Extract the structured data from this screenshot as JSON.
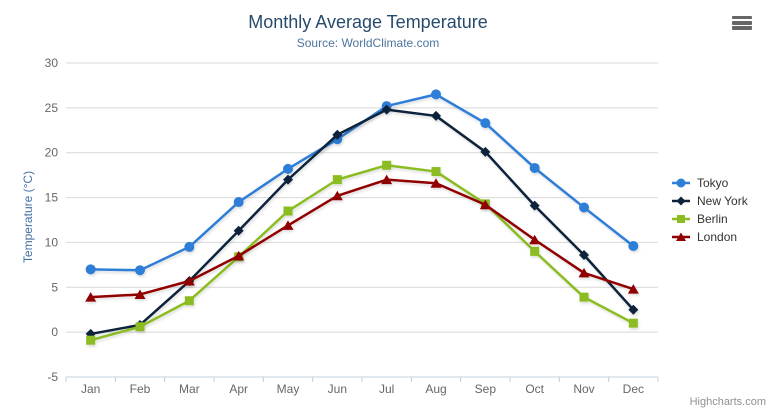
{
  "title": "Monthly Average Temperature",
  "subtitle": "Source: WorldClimate.com",
  "credits": "Highcharts.com",
  "chart_data": {
    "type": "line",
    "title": "Monthly Average Temperature",
    "subtitle": "Source: WorldClimate.com",
    "categories": [
      "Jan",
      "Feb",
      "Mar",
      "Apr",
      "May",
      "Jun",
      "Jul",
      "Aug",
      "Sep",
      "Oct",
      "Nov",
      "Dec"
    ],
    "series": [
      {
        "name": "Tokyo",
        "color": "#2f7ed8",
        "marker": "circle",
        "values": [
          7.0,
          6.9,
          9.5,
          14.5,
          18.2,
          21.5,
          25.2,
          26.5,
          23.3,
          18.3,
          13.9,
          9.6
        ]
      },
      {
        "name": "New York",
        "color": "#0d233a",
        "marker": "diamond",
        "values": [
          -0.2,
          0.8,
          5.7,
          11.3,
          17.0,
          22.0,
          24.8,
          24.1,
          20.1,
          14.1,
          8.6,
          2.5
        ]
      },
      {
        "name": "Berlin",
        "color": "#8bbc21",
        "marker": "square",
        "values": [
          -0.9,
          0.6,
          3.5,
          8.4,
          13.5,
          17.0,
          18.6,
          17.9,
          14.3,
          9.0,
          3.9,
          1.0
        ]
      },
      {
        "name": "London",
        "color": "#910000",
        "marker": "triangle",
        "values": [
          3.9,
          4.2,
          5.7,
          8.5,
          11.9,
          15.2,
          17.0,
          16.6,
          14.2,
          10.3,
          6.6,
          4.8
        ]
      }
    ],
    "xlabel": "",
    "ylabel": "Temperature (°C)",
    "ylim": [
      -5,
      30
    ],
    "ytick_step": 5,
    "grid": true,
    "legend_position": "right"
  },
  "palette": {
    "grid_line": "#d8d8d8",
    "axis_line": "#c0d0e0",
    "tick_label": "#666666",
    "title_color": "#274b6d",
    "subtitle_color": "#4d759e",
    "yaxis_title_color": "#4572a7",
    "legend_text": "#333333",
    "credits_color": "#909090",
    "menu_icon_color": "#666666"
  }
}
